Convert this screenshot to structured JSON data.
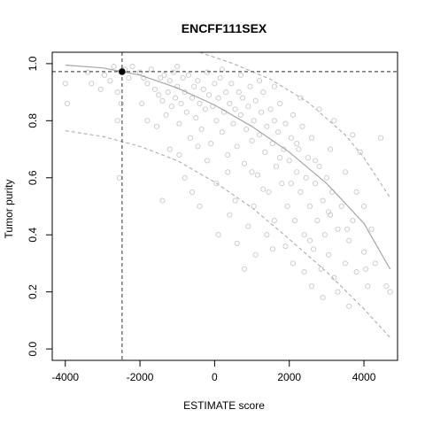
{
  "chart_data": {
    "type": "scatter",
    "title": "ENCFF111SEX",
    "xlabel": "ESTIMATE score",
    "ylabel": "Tumor purity",
    "xlim": [
      -4350,
      4900
    ],
    "ylim": [
      -0.04,
      1.04
    ],
    "x_ticks": [
      -4000,
      -2000,
      0,
      2000,
      4000
    ],
    "x_tick_labels": [
      "-4000",
      "-2000",
      "0",
      "2000",
      "4000"
    ],
    "y_ticks": [
      0.0,
      0.2,
      0.4,
      0.6,
      0.8,
      1.0
    ],
    "y_tick_labels": [
      "0.0",
      "0.2",
      "0.4",
      "0.6",
      "0.8",
      "1.0"
    ],
    "grid": false,
    "colors": {
      "points": "#c8c8c8",
      "fit_line": "#a6a6a6",
      "reference": "#555555",
      "highlight": "#000000"
    },
    "highlight_point": {
      "x": -2480,
      "y": 0.972
    },
    "reference_lines": {
      "vertical_x": -2480,
      "horizontal_y": 0.972
    },
    "fit_curve": {
      "x": [
        -4000,
        -3000,
        -2000,
        -1000,
        0,
        1000,
        2000,
        3000,
        4000,
        4700
      ],
      "y": [
        0.995,
        0.985,
        0.96,
        0.915,
        0.855,
        0.78,
        0.69,
        0.58,
        0.44,
        0.28
      ]
    },
    "lower_band": {
      "x": [
        -4000,
        -3000,
        -2000,
        -1000,
        0,
        1000,
        2000,
        3000,
        4000,
        4700
      ],
      "y": [
        0.765,
        0.745,
        0.71,
        0.66,
        0.585,
        0.495,
        0.385,
        0.27,
        0.14,
        0.04
      ]
    },
    "upper_band": {
      "x": [
        -400,
        500,
        1500,
        2500,
        3500,
        4000,
        4700
      ],
      "y": [
        1.04,
        1.0,
        0.945,
        0.865,
        0.75,
        0.67,
        0.53
      ]
    },
    "series": [
      {
        "values": [
          {
            "x": -4000,
            "y": 0.93
          },
          {
            "x": -3950,
            "y": 0.86
          },
          {
            "x": -3300,
            "y": 0.93
          },
          {
            "x": -3050,
            "y": 0.91
          },
          {
            "x": -2950,
            "y": 0.96
          },
          {
            "x": -2800,
            "y": 0.94
          },
          {
            "x": -2600,
            "y": 0.8
          },
          {
            "x": -2550,
            "y": 0.6
          },
          {
            "x": -2500,
            "y": 0.86
          },
          {
            "x": -2400,
            "y": 0.98
          },
          {
            "x": -2200,
            "y": 0.99
          },
          {
            "x": -2000,
            "y": 0.97
          },
          {
            "x": -1900,
            "y": 0.95
          },
          {
            "x": -1800,
            "y": 0.93
          },
          {
            "x": -1700,
            "y": 0.98
          },
          {
            "x": -1600,
            "y": 0.91
          },
          {
            "x": -1500,
            "y": 0.89
          },
          {
            "x": -1450,
            "y": 0.95
          },
          {
            "x": -1400,
            "y": 0.87
          },
          {
            "x": -1350,
            "y": 0.96
          },
          {
            "x": -1300,
            "y": 0.82
          },
          {
            "x": -1250,
            "y": 0.9
          },
          {
            "x": -1200,
            "y": 0.94
          },
          {
            "x": -1150,
            "y": 0.85
          },
          {
            "x": -1100,
            "y": 0.97
          },
          {
            "x": -1050,
            "y": 0.88
          },
          {
            "x": -1000,
            "y": 0.92
          },
          {
            "x": -950,
            "y": 0.79
          },
          {
            "x": -900,
            "y": 0.86
          },
          {
            "x": -850,
            "y": 0.95
          },
          {
            "x": -800,
            "y": 0.9
          },
          {
            "x": -750,
            "y": 0.83
          },
          {
            "x": -700,
            "y": 0.96
          },
          {
            "x": -650,
            "y": 0.74
          },
          {
            "x": -600,
            "y": 0.88
          },
          {
            "x": -550,
            "y": 0.92
          },
          {
            "x": -500,
            "y": 0.81
          },
          {
            "x": -450,
            "y": 0.94
          },
          {
            "x": -400,
            "y": 0.86
          },
          {
            "x": -350,
            "y": 0.77
          },
          {
            "x": -300,
            "y": 0.91
          },
          {
            "x": -250,
            "y": 0.84
          },
          {
            "x": -200,
            "y": 0.97
          },
          {
            "x": -150,
            "y": 0.89
          },
          {
            "x": -100,
            "y": 0.72
          },
          {
            "x": -50,
            "y": 0.85
          },
          {
            "x": 0,
            "y": 0.93
          },
          {
            "x": 50,
            "y": 0.8
          },
          {
            "x": 100,
            "y": 0.88
          },
          {
            "x": 150,
            "y": 0.95
          },
          {
            "x": 200,
            "y": 0.76
          },
          {
            "x": 250,
            "y": 0.83
          },
          {
            "x": 300,
            "y": 0.9
          },
          {
            "x": 350,
            "y": 0.68
          },
          {
            "x": 400,
            "y": 0.86
          },
          {
            "x": 450,
            "y": 0.93
          },
          {
            "x": 500,
            "y": 0.79
          },
          {
            "x": 550,
            "y": 0.84
          },
          {
            "x": 600,
            "y": 0.71
          },
          {
            "x": 650,
            "y": 0.9
          },
          {
            "x": 700,
            "y": 0.82
          },
          {
            "x": 750,
            "y": 0.88
          },
          {
            "x": 800,
            "y": 0.65
          },
          {
            "x": 850,
            "y": 0.77
          },
          {
            "x": 900,
            "y": 0.85
          },
          {
            "x": 950,
            "y": 0.92
          },
          {
            "x": 1000,
            "y": 0.73
          },
          {
            "x": 1050,
            "y": 0.8
          },
          {
            "x": 1100,
            "y": 0.87
          },
          {
            "x": 1150,
            "y": 0.61
          },
          {
            "x": 1200,
            "y": 0.75
          },
          {
            "x": 1250,
            "y": 0.83
          },
          {
            "x": 1300,
            "y": 0.9
          },
          {
            "x": 1350,
            "y": 0.69
          },
          {
            "x": 1400,
            "y": 0.78
          },
          {
            "x": 1450,
            "y": 0.55
          },
          {
            "x": 1500,
            "y": 0.84
          },
          {
            "x": 1550,
            "y": 0.72
          },
          {
            "x": 1600,
            "y": 0.8
          },
          {
            "x": 1650,
            "y": 0.64
          },
          {
            "x": 1700,
            "y": 0.76
          },
          {
            "x": 1750,
            "y": 0.86
          },
          {
            "x": 1800,
            "y": 0.58
          },
          {
            "x": 1850,
            "y": 0.7
          },
          {
            "x": 1900,
            "y": 0.79
          },
          {
            "x": 1950,
            "y": 0.5
          },
          {
            "x": 2000,
            "y": 0.66
          },
          {
            "x": 2050,
            "y": 0.74
          },
          {
            "x": 2100,
            "y": 0.82
          },
          {
            "x": 2150,
            "y": 0.45
          },
          {
            "x": 2200,
            "y": 0.62
          },
          {
            "x": 2250,
            "y": 0.7
          },
          {
            "x": 2300,
            "y": 0.55
          },
          {
            "x": 2350,
            "y": 0.78
          },
          {
            "x": 2400,
            "y": 0.4
          },
          {
            "x": 2450,
            "y": 0.6
          },
          {
            "x": 2500,
            "y": 0.67
          },
          {
            "x": 2550,
            "y": 0.5
          },
          {
            "x": 2600,
            "y": 0.74
          },
          {
            "x": 2650,
            "y": 0.35
          },
          {
            "x": 2700,
            "y": 0.58
          },
          {
            "x": 2750,
            "y": 0.45
          },
          {
            "x": 2800,
            "y": 0.64
          },
          {
            "x": 2850,
            "y": 0.28
          },
          {
            "x": 2900,
            "y": 0.52
          },
          {
            "x": 2950,
            "y": 0.4
          },
          {
            "x": 3000,
            "y": 0.6
          },
          {
            "x": 3050,
            "y": 0.33
          },
          {
            "x": 3100,
            "y": 0.47
          },
          {
            "x": 3150,
            "y": 0.55
          },
          {
            "x": 3200,
            "y": 0.25
          },
          {
            "x": 3300,
            "y": 0.42
          },
          {
            "x": 3400,
            "y": 0.5
          },
          {
            "x": 3500,
            "y": 0.3
          },
          {
            "x": 3600,
            "y": 0.38
          },
          {
            "x": 3700,
            "y": 0.45
          },
          {
            "x": 3800,
            "y": 0.27
          },
          {
            "x": 3900,
            "y": 0.69
          },
          {
            "x": 4000,
            "y": 0.34
          },
          {
            "x": 4100,
            "y": 0.22
          },
          {
            "x": 4300,
            "y": 0.3
          },
          {
            "x": 4450,
            "y": 0.74
          },
          {
            "x": 4600,
            "y": 0.22
          },
          {
            "x": 4700,
            "y": 0.2
          },
          {
            "x": -1400,
            "y": 0.52
          },
          {
            "x": -800,
            "y": 0.6
          },
          {
            "x": -400,
            "y": 0.5
          },
          {
            "x": 100,
            "y": 0.4
          },
          {
            "x": 600,
            "y": 0.37
          },
          {
            "x": 1100,
            "y": 0.33
          },
          {
            "x": 800,
            "y": 0.28
          },
          {
            "x": 1600,
            "y": 0.45
          },
          {
            "x": 2100,
            "y": 0.3
          },
          {
            "x": 2600,
            "y": 0.22
          },
          {
            "x": 1300,
            "y": 0.56
          },
          {
            "x": 350,
            "y": 0.62
          },
          {
            "x": -200,
            "y": 0.66
          },
          {
            "x": 1900,
            "y": 0.36
          },
          {
            "x": 2900,
            "y": 0.18
          },
          {
            "x": 3600,
            "y": 0.15
          },
          {
            "x": 3300,
            "y": 0.2
          },
          {
            "x": -3400,
            "y": 0.97
          },
          {
            "x": -2700,
            "y": 0.99
          },
          {
            "x": -1000,
            "y": 0.99
          },
          {
            "x": 200,
            "y": 0.98
          },
          {
            "x": 700,
            "y": 0.96
          },
          {
            "x": 1200,
            "y": 0.94
          },
          {
            "x": 1600,
            "y": 0.92
          },
          {
            "x": 2300,
            "y": 0.88
          },
          {
            "x": 2800,
            "y": 0.84
          },
          {
            "x": 3200,
            "y": 0.8
          },
          {
            "x": 3700,
            "y": 0.75
          },
          {
            "x": -1800,
            "y": 0.8
          },
          {
            "x": -1200,
            "y": 0.7
          },
          {
            "x": -600,
            "y": 0.55
          },
          {
            "x": 400,
            "y": 0.47
          },
          {
            "x": 900,
            "y": 0.43
          },
          {
            "x": 1400,
            "y": 0.4
          },
          {
            "x": 2400,
            "y": 0.27
          },
          {
            "x": 1000,
            "y": 0.62
          },
          {
            "x": 1750,
            "y": 0.67
          },
          {
            "x": 2200,
            "y": 0.72
          },
          {
            "x": 2700,
            "y": 0.66
          },
          {
            "x": 3100,
            "y": 0.7
          },
          {
            "x": 3500,
            "y": 0.62
          },
          {
            "x": 4000,
            "y": 0.5
          },
          {
            "x": 4200,
            "y": 0.42
          },
          {
            "x": 3800,
            "y": 0.55
          },
          {
            "x": -2600,
            "y": 0.9
          },
          {
            "x": -2300,
            "y": 0.95
          },
          {
            "x": -1950,
            "y": 0.86
          },
          {
            "x": -1550,
            "y": 0.78
          },
          {
            "x": -950,
            "y": 0.68
          },
          {
            "x": -450,
            "y": 0.71
          },
          {
            "x": 50,
            "y": 0.58
          },
          {
            "x": 550,
            "y": 0.52
          },
          {
            "x": 1050,
            "y": 0.5
          },
          {
            "x": 1550,
            "y": 0.35
          },
          {
            "x": 2050,
            "y": 0.58
          },
          {
            "x": 2550,
            "y": 0.38
          },
          {
            "x": 3050,
            "y": 0.48
          },
          {
            "x": 3550,
            "y": 0.42
          },
          {
            "x": 4050,
            "y": 0.28
          }
        ]
      }
    ]
  }
}
